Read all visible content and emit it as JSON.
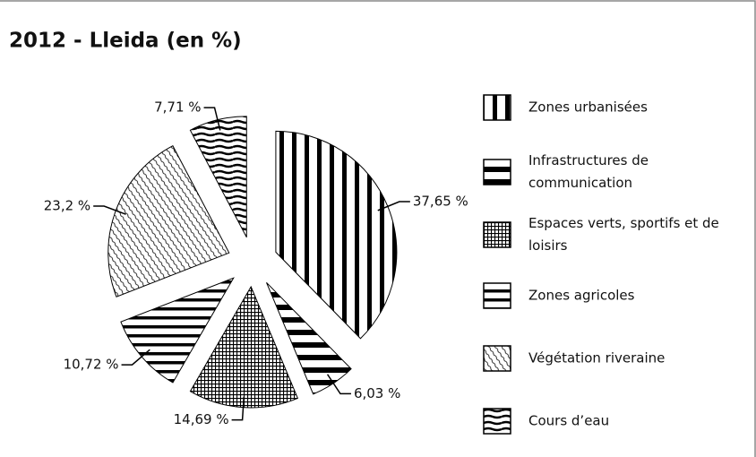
{
  "chart_data": {
    "type": "pie",
    "title": "2012 - Lleida (en %)",
    "categories": [
      "Zones urbanisées",
      "Infrastructures de communication",
      "Espaces verts, sportifs et de loisirs",
      "Zones agricoles",
      "Végétation riveraine",
      "Cours d’eau"
    ],
    "values": [
      37.65,
      6.03,
      14.69,
      10.72,
      23.2,
      7.71
    ],
    "value_labels": [
      "37,65 %",
      "6,03 %",
      "14,69 %",
      "10,72 %",
      "23,2 %",
      "7,71 %"
    ],
    "legend": "right"
  }
}
